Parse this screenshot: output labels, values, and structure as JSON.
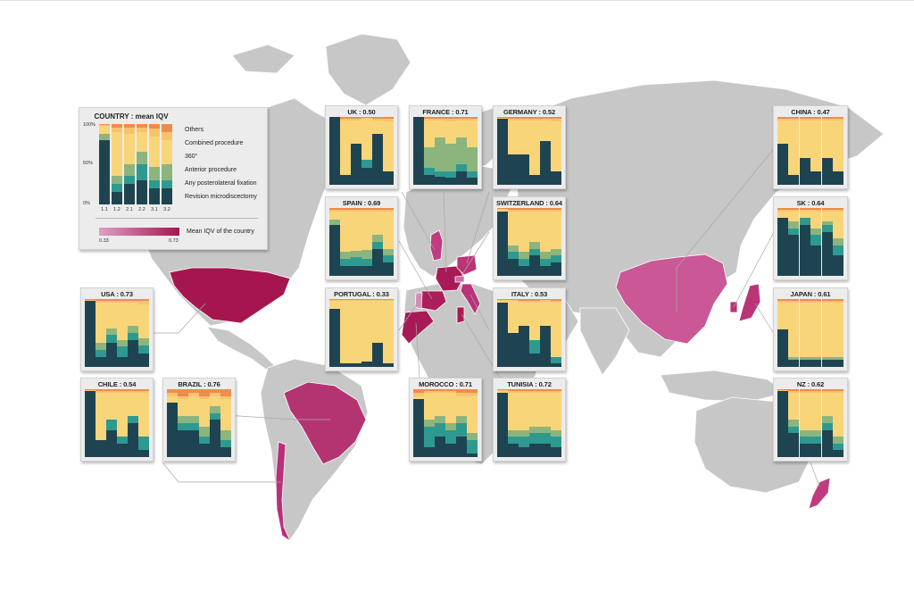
{
  "colors": {
    "land": "#c7c7c7",
    "border": "#ffffff",
    "connector": "#a8a8a8",
    "segments": [
      "#1f4451",
      "#2e9a8f",
      "#8cb57e",
      "#f9d57a",
      "#f7c46d",
      "#ee8c4f"
    ]
  },
  "legend": {
    "title": "COUNTRY : mean IQV",
    "axis_ticks": [
      "100%",
      "50%",
      "0%"
    ],
    "categories": [
      "1.1",
      "1.2",
      "2.1",
      "2.2",
      "3.1",
      "3.2"
    ],
    "items": [
      "Others",
      "Combined procedure",
      "360°",
      "Anterior procedure",
      "Any posterolateral fixation",
      "Revision microdiscectomy"
    ],
    "gradient_label": "Mean IQV of the country",
    "gradient_min": "0.33",
    "gradient_max": "0.73",
    "example_bars": [
      [
        80,
        0,
        8,
        10,
        1,
        1
      ],
      [
        15,
        10,
        10,
        55,
        6,
        4
      ],
      [
        25,
        10,
        15,
        38,
        8,
        4
      ],
      [
        30,
        20,
        15,
        25,
        6,
        4
      ],
      [
        20,
        10,
        17,
        38,
        10,
        5
      ],
      [
        20,
        10,
        20,
        30,
        10,
        10
      ]
    ]
  },
  "countries": [
    {
      "name": "UK",
      "label": "UK : 0.50",
      "iqv": 0.5,
      "color": "#c03c80",
      "bars": [
        [
          100,
          0,
          0,
          0,
          0,
          0
        ],
        [
          15,
          0,
          0,
          80,
          3,
          2
        ],
        [
          60,
          0,
          0,
          35,
          3,
          2
        ],
        [
          25,
          12,
          0,
          60,
          2,
          1
        ],
        [
          75,
          0,
          0,
          20,
          3,
          2
        ],
        [
          20,
          0,
          0,
          74,
          4,
          2
        ]
      ]
    },
    {
      "name": "FRANCE",
      "label": "FRANCE : 0.71",
      "iqv": 0.71,
      "color": "#a81a56",
      "bars": [
        [
          100,
          0,
          0,
          0,
          0,
          0
        ],
        [
          15,
          10,
          30,
          40,
          3,
          2
        ],
        [
          12,
          8,
          50,
          25,
          3,
          2
        ],
        [
          10,
          10,
          40,
          34,
          4,
          2
        ],
        [
          20,
          10,
          40,
          25,
          3,
          2
        ],
        [
          10,
          10,
          35,
          40,
          3,
          2
        ]
      ]
    },
    {
      "name": "GERMANY",
      "label": "GERMANY : 0.52",
      "iqv": 0.52,
      "color": "#bb3478",
      "bars": [
        [
          98,
          0,
          0,
          0,
          1,
          1
        ],
        [
          45,
          0,
          0,
          50,
          3,
          2
        ],
        [
          45,
          0,
          0,
          50,
          3,
          2
        ],
        [
          15,
          0,
          0,
          80,
          3,
          2
        ],
        [
          65,
          0,
          0,
          30,
          3,
          2
        ],
        [
          20,
          0,
          0,
          74,
          4,
          2
        ]
      ]
    },
    {
      "name": "SPAIN",
      "label": "SPAIN : 0.69",
      "iqv": 0.69,
      "color": "#ab1e5a",
      "bars": [
        [
          75,
          0,
          8,
          12,
          3,
          2
        ],
        [
          15,
          10,
          10,
          60,
          3,
          2
        ],
        [
          15,
          12,
          10,
          58,
          3,
          2
        ],
        [
          15,
          10,
          13,
          57,
          3,
          2
        ],
        [
          40,
          10,
          10,
          35,
          3,
          2
        ],
        [
          20,
          10,
          10,
          55,
          3,
          2
        ]
      ]
    },
    {
      "name": "SWITZERLAND",
      "label": "SWITZERLAND : 0.64",
      "iqv": 0.64,
      "color": "#ce69a2",
      "bars": [
        [
          95,
          0,
          0,
          2,
          2,
          1
        ],
        [
          25,
          10,
          10,
          50,
          3,
          2
        ],
        [
          15,
          10,
          10,
          60,
          3,
          2
        ],
        [
          30,
          10,
          10,
          45,
          3,
          2
        ],
        [
          15,
          10,
          10,
          60,
          3,
          2
        ],
        [
          20,
          10,
          10,
          55,
          3,
          2
        ]
      ]
    },
    {
      "name": "PORTUGAL",
      "label": "PORTUGAL : 0.33",
      "iqv": 0.33,
      "color": "#d78ab8",
      "bars": [
        [
          85,
          0,
          0,
          12,
          2,
          1
        ],
        [
          5,
          0,
          0,
          92,
          2,
          1
        ],
        [
          5,
          0,
          0,
          92,
          2,
          1
        ],
        [
          8,
          0,
          0,
          89,
          2,
          1
        ],
        [
          35,
          0,
          0,
          62,
          2,
          1
        ],
        [
          5,
          0,
          0,
          92,
          2,
          1
        ]
      ]
    },
    {
      "name": "ITALY",
      "label": "ITALY : 0.53",
      "iqv": 0.53,
      "color": "#b9327a",
      "bars": [
        [
          95,
          0,
          0,
          2,
          2,
          1
        ],
        [
          50,
          0,
          0,
          47,
          2,
          1
        ],
        [
          60,
          0,
          0,
          35,
          3,
          2
        ],
        [
          20,
          20,
          0,
          55,
          3,
          2
        ],
        [
          60,
          0,
          0,
          36,
          3,
          1
        ],
        [
          5,
          10,
          0,
          80,
          3,
          2
        ]
      ]
    },
    {
      "name": "MOROCCO",
      "label": "MOROCCO : 0.71",
      "iqv": 0.71,
      "color": "#a81a56",
      "bars": [
        [
          85,
          0,
          0,
          5,
          5,
          5
        ],
        [
          15,
          30,
          10,
          40,
          3,
          2
        ],
        [
          30,
          20,
          10,
          35,
          3,
          2
        ],
        [
          20,
          20,
          10,
          45,
          3,
          2
        ],
        [
          30,
          20,
          10,
          30,
          5,
          5
        ],
        [
          5,
          20,
          10,
          55,
          5,
          5
        ]
      ]
    },
    {
      "name": "TUNISIA",
      "label": "TUNISIA : 0.72",
      "iqv": 0.72,
      "color": "#a71955",
      "bars": [
        [
          95,
          0,
          0,
          2,
          2,
          1
        ],
        [
          20,
          10,
          10,
          55,
          3,
          2
        ],
        [
          15,
          15,
          10,
          55,
          3,
          2
        ],
        [
          20,
          15,
          10,
          50,
          3,
          2
        ],
        [
          20,
          15,
          10,
          50,
          3,
          2
        ],
        [
          15,
          15,
          10,
          55,
          3,
          2
        ]
      ]
    },
    {
      "name": "USA",
      "label": "USA : 0.73",
      "iqv": 0.73,
      "color": "#a5164f",
      "bars": [
        [
          98,
          0,
          0,
          0,
          1,
          1
        ],
        [
          15,
          10,
          10,
          60,
          3,
          2
        ],
        [
          35,
          12,
          10,
          38,
          3,
          2
        ],
        [
          15,
          15,
          10,
          55,
          3,
          2
        ],
        [
          40,
          10,
          10,
          35,
          3,
          2
        ],
        [
          20,
          12,
          10,
          50,
          5,
          3
        ]
      ]
    },
    {
      "name": "CHILE",
      "label": "CHILE : 0.54",
      "iqv": 0.54,
      "color": "#b8307a",
      "bars": [
        [
          98,
          0,
          0,
          0,
          1,
          1
        ],
        [
          25,
          0,
          0,
          70,
          3,
          2
        ],
        [
          40,
          15,
          0,
          40,
          3,
          2
        ],
        [
          20,
          10,
          0,
          65,
          3,
          2
        ],
        [
          50,
          10,
          0,
          35,
          3,
          2
        ],
        [
          10,
          20,
          0,
          65,
          3,
          2
        ]
      ]
    },
    {
      "name": "BRAZIL",
      "label": "BRAZIL : 0.76",
      "iqv": 0.76,
      "color": "#b43472",
      "bars": [
        [
          80,
          0,
          0,
          10,
          5,
          5
        ],
        [
          40,
          10,
          10,
          25,
          5,
          10
        ],
        [
          40,
          10,
          10,
          30,
          5,
          5
        ],
        [
          20,
          10,
          15,
          40,
          5,
          10
        ],
        [
          55,
          10,
          10,
          15,
          5,
          5
        ],
        [
          15,
          10,
          15,
          45,
          5,
          10
        ]
      ]
    },
    {
      "name": "CHINA",
      "label": "CHINA : 0.47",
      "iqv": 0.47,
      "color": "#ca5896",
      "bars": [
        [
          60,
          0,
          0,
          35,
          3,
          2
        ],
        [
          15,
          0,
          0,
          80,
          3,
          2
        ],
        [
          40,
          0,
          0,
          55,
          3,
          2
        ],
        [
          20,
          0,
          0,
          75,
          3,
          2
        ],
        [
          40,
          0,
          0,
          55,
          3,
          2
        ],
        [
          20,
          0,
          0,
          75,
          3,
          2
        ]
      ]
    },
    {
      "name": "SK",
      "label": "SK : 0.64",
      "iqv": 0.64,
      "color": "#bb3478",
      "bars": [
        [
          85,
          0,
          0,
          10,
          3,
          2
        ],
        [
          60,
          10,
          10,
          15,
          3,
          2
        ],
        [
          75,
          10,
          0,
          10,
          3,
          2
        ],
        [
          45,
          15,
          10,
          25,
          3,
          2
        ],
        [
          65,
          10,
          5,
          15,
          3,
          2
        ],
        [
          30,
          15,
          10,
          40,
          3,
          2
        ]
      ]
    },
    {
      "name": "JAPAN",
      "label": "JAPAN : 0.61",
      "iqv": 0.61,
      "color": "#bb3478",
      "bars": [
        [
          55,
          0,
          0,
          40,
          3,
          2
        ],
        [
          10,
          0,
          5,
          80,
          3,
          2
        ],
        [
          10,
          0,
          5,
          80,
          3,
          2
        ],
        [
          10,
          0,
          5,
          80,
          3,
          2
        ],
        [
          10,
          0,
          5,
          80,
          3,
          2
        ],
        [
          10,
          0,
          5,
          80,
          3,
          2
        ]
      ]
    },
    {
      "name": "NZ",
      "label": "NZ : 0.62",
      "iqv": 0.62,
      "color": "#c03c80",
      "bars": [
        [
          98,
          0,
          0,
          0,
          1,
          1
        ],
        [
          35,
          10,
          10,
          40,
          3,
          2
        ],
        [
          20,
          10,
          10,
          55,
          3,
          2
        ],
        [
          20,
          10,
          10,
          55,
          3,
          2
        ],
        [
          40,
          10,
          10,
          35,
          3,
          2
        ],
        [
          10,
          10,
          10,
          65,
          3,
          2
        ]
      ]
    }
  ]
}
